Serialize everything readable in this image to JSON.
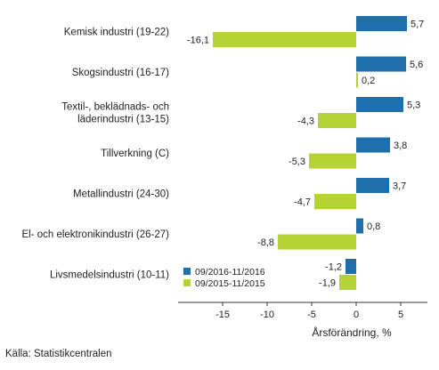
{
  "chart_data": {
    "type": "bar",
    "orientation": "horizontal",
    "categories": [
      [
        "Kemisk industri (19-22)"
      ],
      [
        "Skogsindustri (16-17)"
      ],
      [
        "Textil-, beklädnads- och",
        "läderindustri (13-15)"
      ],
      [
        "Tillverkning (C)"
      ],
      [
        "Metallindustri (24-30)"
      ],
      [
        "El- och elektronikindustri (26-27)"
      ],
      [
        "Livsmedelsindustri (10-11)"
      ]
    ],
    "series": [
      {
        "name": "09/2016-11/2016",
        "color": "#1f6fad",
        "values": [
          5.7,
          5.6,
          5.3,
          3.8,
          3.7,
          0.8,
          -1.2
        ],
        "labels": [
          "5,7",
          "5,6",
          "5,3",
          "3,8",
          "3,7",
          "0,8",
          "-1,2"
        ]
      },
      {
        "name": "09/2015-11/2015",
        "color": "#b5d334",
        "values": [
          -16.1,
          0.2,
          -4.3,
          -5.3,
          -4.7,
          -8.8,
          -1.9
        ],
        "labels": [
          "-16,1",
          "0,2",
          "-4,3",
          "-5,3",
          "-4,7",
          "-8,8",
          "-1,9"
        ]
      }
    ],
    "xlim": [
      -20,
      8
    ],
    "xticks": [
      -15,
      -10,
      -5,
      0,
      5
    ],
    "xtick_labels": [
      "-15",
      "-10",
      "-5",
      "0",
      "5"
    ],
    "xlabel": "Årsförändring, %",
    "legend_position": "bottom-left inside plot",
    "grid": false
  },
  "source": "Källa: Statistikcentralen"
}
